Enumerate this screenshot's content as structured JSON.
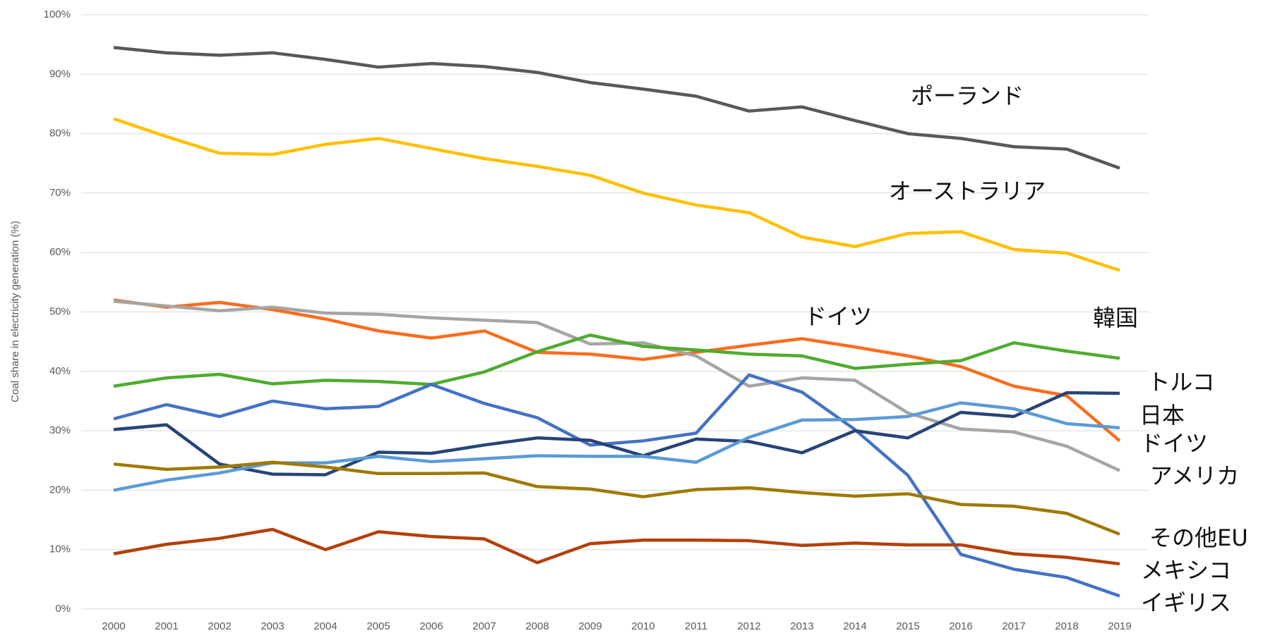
{
  "chart_data": {
    "type": "line",
    "y_label": "Coal share in electricity generation (%)",
    "categories": [
      "2000",
      "2001",
      "2002",
      "2003",
      "2004",
      "2005",
      "2006",
      "2007",
      "2008",
      "2009",
      "2010",
      "2011",
      "2012",
      "2013",
      "2014",
      "2015",
      "2016",
      "2017",
      "2018",
      "2019"
    ],
    "ylim": [
      0,
      100
    ],
    "yticks": [
      {
        "value": 0,
        "label": "0%"
      },
      {
        "value": 10,
        "label": "10%"
      },
      {
        "value": 20,
        "label": "20%"
      },
      {
        "value": 30,
        "label": "30%"
      },
      {
        "value": 40,
        "label": "40%"
      },
      {
        "value": 50,
        "label": "50%"
      },
      {
        "value": 60,
        "label": "60%"
      },
      {
        "value": 70,
        "label": "70%"
      },
      {
        "value": 80,
        "label": "80%"
      },
      {
        "value": 90,
        "label": "90%"
      },
      {
        "value": 100,
        "label": "100%"
      }
    ],
    "grid": true,
    "series": [
      {
        "color": "#595959",
        "values": [
          94.5,
          93.6,
          93.2,
          93.6,
          92.5,
          91.2,
          91.8,
          91.3,
          90.3,
          88.6,
          87.5,
          86.3,
          83.8,
          84.5,
          82.2,
          80.0,
          79.2,
          77.8,
          77.4,
          74.2
        ]
      },
      {
        "color": "#ffc000",
        "values": [
          82.5,
          79.5,
          76.7,
          76.5,
          78.2,
          79.2,
          77.5,
          75.8,
          74.5,
          73.0,
          70.0,
          68.0,
          66.7,
          62.6,
          61.0,
          63.2,
          63.5,
          60.5,
          59.9,
          57.0
        ]
      },
      {
        "color": "#fb6c1e",
        "values": [
          52.0,
          50.8,
          51.6,
          50.4,
          48.8,
          46.8,
          45.6,
          46.8,
          43.2,
          42.9,
          42.0,
          43.2,
          44.4,
          45.5,
          44.1,
          42.6,
          40.8,
          37.5,
          35.9,
          28.3
        ]
      },
      {
        "color": "#a5a5a5",
        "values": [
          51.8,
          51.0,
          50.2,
          50.8,
          49.8,
          49.6,
          49.0,
          48.6,
          48.2,
          44.6,
          44.8,
          42.6,
          37.5,
          38.9,
          38.5,
          33.0,
          30.3,
          29.8,
          27.4,
          23.3
        ]
      },
      {
        "color": "#4eac2f",
        "values": [
          37.5,
          38.9,
          39.5,
          37.9,
          38.5,
          38.3,
          37.8,
          39.9,
          43.3,
          46.1,
          44.2,
          43.6,
          42.9,
          42.6,
          40.5,
          41.2,
          41.8,
          44.8,
          43.4,
          42.2
        ]
      },
      {
        "color": "#4472c4",
        "values": [
          32.0,
          34.4,
          32.4,
          35.0,
          33.7,
          34.1,
          37.8,
          34.6,
          32.2,
          27.6,
          28.3,
          29.6,
          39.4,
          36.5,
          30.2,
          22.5,
          9.2,
          6.7,
          5.3,
          2.2
        ]
      },
      {
        "color": "#264478",
        "values": [
          30.2,
          31.0,
          24.4,
          22.7,
          22.6,
          26.4,
          26.2,
          27.6,
          28.8,
          28.4,
          25.8,
          28.6,
          28.2,
          26.3,
          30.0,
          28.8,
          33.1,
          32.4,
          36.4,
          36.3
        ]
      },
      {
        "color": "#5b9bd5",
        "values": [
          20.0,
          21.7,
          22.9,
          24.6,
          24.6,
          25.7,
          24.8,
          25.3,
          25.8,
          25.7,
          25.7,
          24.7,
          28.9,
          31.8,
          31.9,
          32.4,
          34.7,
          33.7,
          31.2,
          30.5
        ]
      },
      {
        "color": "#9e7a00",
        "values": [
          24.4,
          23.5,
          23.9,
          24.7,
          23.9,
          22.8,
          22.8,
          22.9,
          20.6,
          20.2,
          18.9,
          20.1,
          20.4,
          19.6,
          19.0,
          19.4,
          17.6,
          17.3,
          16.1,
          12.6
        ]
      },
      {
        "color": "#b5400a",
        "values": [
          9.3,
          10.9,
          11.9,
          13.4,
          10.0,
          13.0,
          12.2,
          11.8,
          7.8,
          11.0,
          11.6,
          11.6,
          11.5,
          10.7,
          11.1,
          10.8,
          10.8,
          9.3,
          8.7,
          7.6
        ]
      }
    ],
    "annotations": [
      "ポーランド",
      "オーストラリア",
      "ドイツ",
      "韓国",
      "トルコ",
      "日本",
      "ドイツ",
      "アメリカ",
      "その他EU",
      "メキシコ",
      "イギリス"
    ]
  }
}
